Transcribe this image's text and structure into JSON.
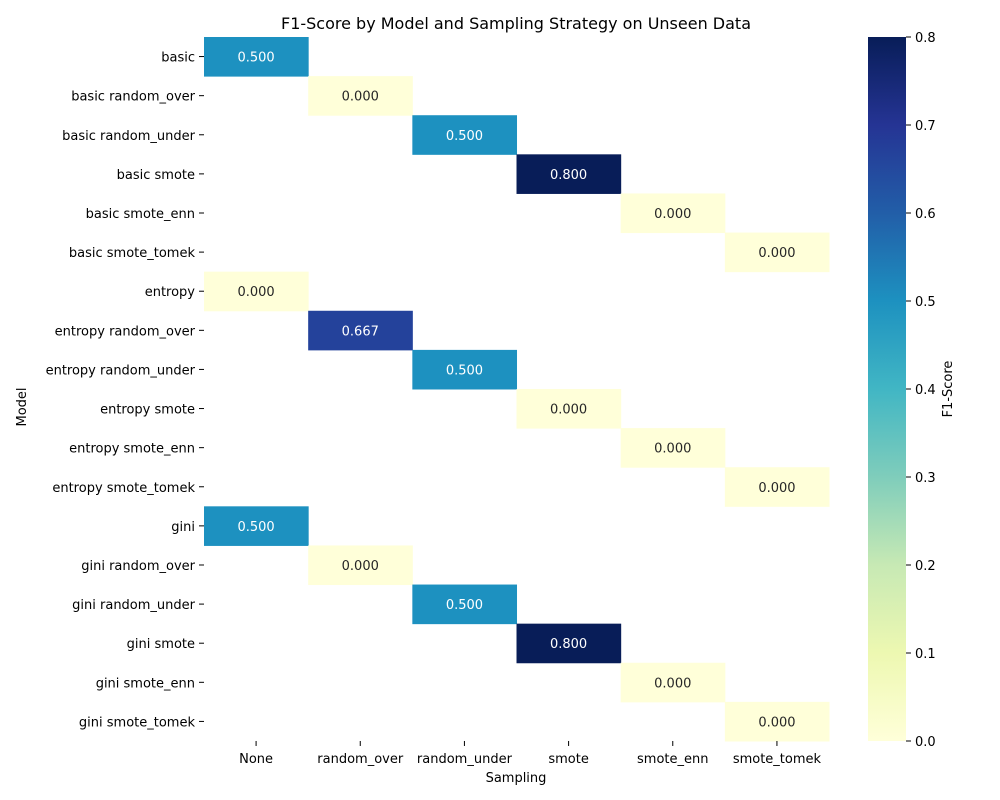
{
  "chart_data": {
    "type": "heatmap",
    "title": "F1-Score by Model and Sampling Strategy on Unseen Data",
    "xlabel": "Sampling",
    "ylabel": "Model",
    "colorbar_label": "F1-Score",
    "colormap": "YlGnBu",
    "vmin": 0.0,
    "vmax": 0.8,
    "colorbar_ticks": [
      "0.0",
      "0.1",
      "0.2",
      "0.3",
      "0.4",
      "0.5",
      "0.6",
      "0.7",
      "0.8"
    ],
    "columns": [
      "None",
      "random_over",
      "random_under",
      "smote",
      "smote_enn",
      "smote_tomek"
    ],
    "rows": [
      "basic",
      "basic random_over",
      "basic random_under",
      "basic smote",
      "basic smote_enn",
      "basic smote_tomek",
      "entropy",
      "entropy random_over",
      "entropy random_under",
      "entropy smote",
      "entropy smote_enn",
      "entropy smote_tomek",
      "gini",
      "gini random_over",
      "gini random_under",
      "gini smote",
      "gini smote_enn",
      "gini smote_tomek"
    ],
    "cells": [
      {
        "row": "basic",
        "col": "None",
        "value": 0.5,
        "label": "0.500"
      },
      {
        "row": "basic random_over",
        "col": "random_over",
        "value": 0.0,
        "label": "0.000"
      },
      {
        "row": "basic random_under",
        "col": "random_under",
        "value": 0.5,
        "label": "0.500"
      },
      {
        "row": "basic smote",
        "col": "smote",
        "value": 0.8,
        "label": "0.800"
      },
      {
        "row": "basic smote_enn",
        "col": "smote_enn",
        "value": 0.0,
        "label": "0.000"
      },
      {
        "row": "basic smote_tomek",
        "col": "smote_tomek",
        "value": 0.0,
        "label": "0.000"
      },
      {
        "row": "entropy",
        "col": "None",
        "value": 0.0,
        "label": "0.000"
      },
      {
        "row": "entropy random_over",
        "col": "random_over",
        "value": 0.667,
        "label": "0.667"
      },
      {
        "row": "entropy random_under",
        "col": "random_under",
        "value": 0.5,
        "label": "0.500"
      },
      {
        "row": "entropy smote",
        "col": "smote",
        "value": 0.0,
        "label": "0.000"
      },
      {
        "row": "entropy smote_enn",
        "col": "smote_enn",
        "value": 0.0,
        "label": "0.000"
      },
      {
        "row": "entropy smote_tomek",
        "col": "smote_tomek",
        "value": 0.0,
        "label": "0.000"
      },
      {
        "row": "gini",
        "col": "None",
        "value": 0.5,
        "label": "0.500"
      },
      {
        "row": "gini random_over",
        "col": "random_over",
        "value": 0.0,
        "label": "0.000"
      },
      {
        "row": "gini random_under",
        "col": "random_under",
        "value": 0.5,
        "label": "0.500"
      },
      {
        "row": "gini smote",
        "col": "smote",
        "value": 0.8,
        "label": "0.800"
      },
      {
        "row": "gini smote_enn",
        "col": "smote_enn",
        "value": 0.0,
        "label": "0.000"
      },
      {
        "row": "gini smote_tomek",
        "col": "smote_tomek",
        "value": 0.0,
        "label": "0.000"
      }
    ]
  }
}
